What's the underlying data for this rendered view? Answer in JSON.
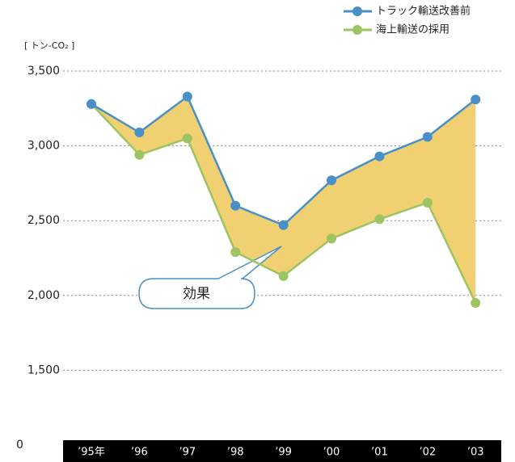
{
  "chart_data": {
    "type": "line",
    "y_label": "[ トン-CO₂ ]",
    "categories": [
      "’95年",
      "’96",
      "’97",
      "’98",
      "’99",
      "’00",
      "’01",
      "’02",
      "’03"
    ],
    "series": [
      {
        "name": "トラック輸送改善前",
        "color": "#4a90c8",
        "values": [
          3280,
          3090,
          3330,
          2600,
          2470,
          2770,
          2930,
          3060,
          3310
        ]
      },
      {
        "name": "海上輸送の採用",
        "color": "#9cc463",
        "values": [
          3280,
          2940,
          3050,
          2290,
          2130,
          2380,
          2510,
          2620,
          1950
        ]
      }
    ],
    "fill_color": "#f0d070",
    "annotation": "効果",
    "ylim": [
      1000,
      3500
    ],
    "yticks": [
      {
        "value": 1500,
        "label": "1,500"
      },
      {
        "value": 2000,
        "label": "2,000"
      },
      {
        "value": 2500,
        "label": "2,500"
      },
      {
        "value": 3000,
        "label": "3,000"
      },
      {
        "value": 3500,
        "label": "3,500"
      }
    ],
    "y_base_label": "0",
    "grid": true,
    "legend": "top-right"
  }
}
